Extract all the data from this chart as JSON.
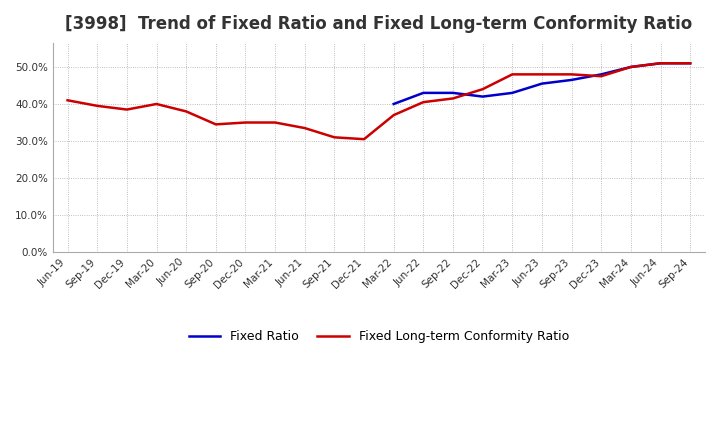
{
  "title": "[3998]  Trend of Fixed Ratio and Fixed Long-term Conformity Ratio",
  "title_fontsize": 12,
  "background_color": "#ffffff",
  "plot_background_color": "#ffffff",
  "grid_color": "#aaaaaa",
  "x_labels": [
    "Jun-19",
    "Sep-19",
    "Dec-19",
    "Mar-20",
    "Jun-20",
    "Sep-20",
    "Dec-20",
    "Mar-21",
    "Jun-21",
    "Sep-21",
    "Dec-21",
    "Mar-22",
    "Jun-22",
    "Sep-22",
    "Dec-22",
    "Mar-23",
    "Jun-23",
    "Sep-23",
    "Dec-23",
    "Mar-24",
    "Jun-24",
    "Sep-24"
  ],
  "fixed_ratio": [
    null,
    null,
    null,
    null,
    null,
    null,
    null,
    null,
    null,
    null,
    null,
    0.4,
    0.43,
    0.43,
    0.42,
    0.43,
    0.455,
    0.465,
    0.48,
    0.5,
    0.51,
    0.51
  ],
  "fixed_lt_ratio": [
    0.41,
    0.395,
    0.385,
    0.4,
    0.38,
    0.345,
    0.35,
    0.35,
    0.335,
    0.31,
    0.305,
    0.37,
    0.405,
    0.415,
    0.44,
    0.48,
    0.48,
    0.48,
    0.475,
    0.5,
    0.51,
    0.51
  ],
  "fixed_ratio_color": "#0000cc",
  "fixed_lt_ratio_color": "#cc0000",
  "ylim": [
    0.0,
    0.565
  ],
  "yticks": [
    0.0,
    0.1,
    0.2,
    0.3,
    0.4,
    0.5
  ],
  "legend_fixed_ratio": "Fixed Ratio",
  "legend_fixed_lt_ratio": "Fixed Long-term Conformity Ratio",
  "line_width": 1.8
}
